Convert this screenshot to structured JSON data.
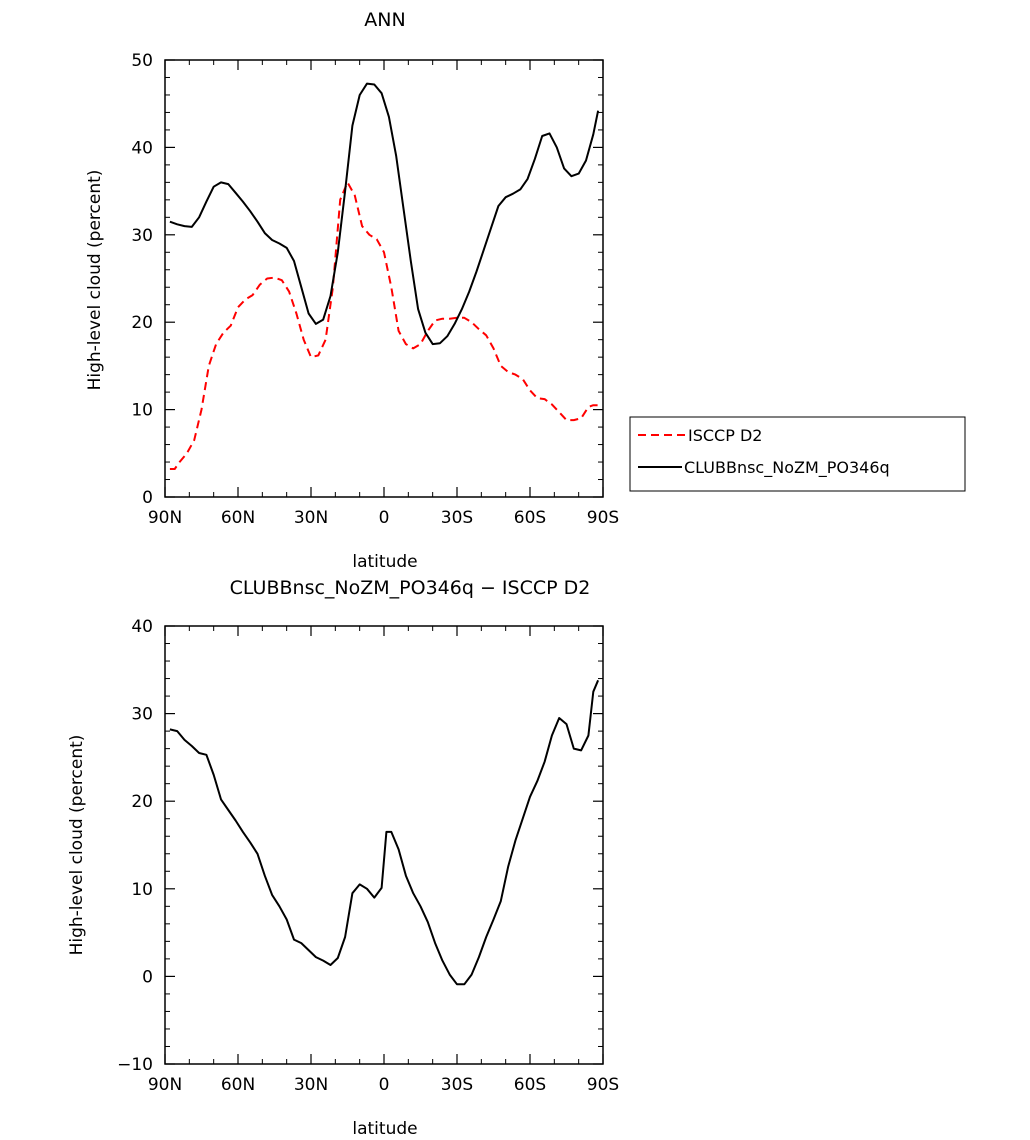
{
  "chart_data": [
    {
      "type": "line",
      "title": "ANN",
      "xlabel": "latitude",
      "ylabel": "High-level cloud (percent)",
      "xlim": [
        90,
        -90
      ],
      "ylim": [
        0,
        50
      ],
      "x_tick_values": [
        90,
        60,
        30,
        0,
        -30,
        -60,
        -90
      ],
      "x_tick_labels": [
        "90N",
        "60N",
        "30N",
        "0",
        "30S",
        "60S",
        "90S"
      ],
      "y_tick_values": [
        0,
        10,
        20,
        30,
        40,
        50
      ],
      "y_tick_labels": [
        "0",
        "10",
        "20",
        "30",
        "40",
        "50"
      ],
      "legend": {
        "placement": "right",
        "entries": [
          "ISCCP D2",
          "CLUBBnsc_NoZM_PO346q"
        ]
      },
      "series": [
        {
          "name": "ISCCP D2",
          "color": "#ff0000",
          "style": "dashed",
          "x": [
            88,
            86,
            84,
            81,
            78,
            75,
            72,
            69,
            66,
            63,
            60,
            57,
            54,
            51,
            48,
            45,
            42,
            39,
            36,
            33,
            30,
            27,
            24,
            21,
            18,
            15,
            12,
            9,
            6,
            3,
            0,
            -3,
            -6,
            -9,
            -12,
            -15,
            -18,
            -21,
            -24,
            -27,
            -30,
            -33,
            -36,
            -39,
            -42,
            -45,
            -48,
            -51,
            -54,
            -57,
            -60,
            -63,
            -66,
            -69,
            -72,
            -75,
            -78,
            -81,
            -84,
            -86,
            -88
          ],
          "values": [
            3.2,
            3.2,
            4.0,
            5.0,
            6.5,
            10.0,
            15.0,
            17.5,
            18.8,
            19.6,
            21.7,
            22.6,
            23.1,
            24.3,
            25.0,
            25.1,
            24.8,
            23.5,
            21.0,
            18.0,
            16.0,
            16.2,
            18.0,
            24.0,
            34.0,
            36.0,
            34.5,
            31.0,
            30.0,
            29.5,
            28.0,
            24.0,
            19.0,
            17.5,
            17.0,
            17.5,
            19.0,
            20.2,
            20.4,
            20.4,
            20.5,
            20.5,
            20.0,
            19.2,
            18.5,
            17.0,
            15.0,
            14.3,
            14.0,
            13.5,
            12.2,
            11.3,
            11.2,
            10.6,
            9.7,
            8.8,
            8.8,
            9.0,
            10.3,
            10.5,
            10.5
          ],
          "note_x_order": "latitude in degrees, positive = north"
        },
        {
          "name": "CLUBBnsc_NoZM_PO346q",
          "color": "#000000",
          "style": "solid",
          "x": [
            88,
            85,
            82,
            79,
            76,
            73,
            70,
            67,
            64,
            61,
            58,
            55,
            52,
            49,
            46,
            43,
            40,
            37,
            34,
            31,
            28,
            25,
            22,
            19,
            16,
            13,
            10,
            7,
            4,
            1,
            -2,
            -5,
            -8,
            -11,
            -14,
            -17,
            -20,
            -23,
            -26,
            -29,
            -32,
            -35,
            -38,
            -41,
            -44,
            -47,
            -50,
            -53,
            -56,
            -59,
            -62,
            -65,
            -68,
            -71,
            -74,
            -77,
            -80,
            -83,
            -86,
            -88
          ],
          "values": [
            31.5,
            31.2,
            31.0,
            30.9,
            32.0,
            33.8,
            35.5,
            36.0,
            35.8,
            34.8,
            33.8,
            32.7,
            31.5,
            30.2,
            29.4,
            29.0,
            28.5,
            27.0,
            24.0,
            21.0,
            19.8,
            20.3,
            23.0,
            28.0,
            35.0,
            42.5,
            46.0,
            47.3,
            47.2,
            46.2,
            43.5,
            39.0,
            33.0,
            27.0,
            21.5,
            18.8,
            17.5,
            17.6,
            18.4,
            19.8,
            21.5,
            23.5,
            25.8,
            28.3,
            30.8,
            33.3,
            34.3,
            34.7,
            35.2,
            36.4,
            38.7,
            41.3,
            41.6,
            40.0,
            37.6,
            36.7,
            37.0,
            38.5,
            41.5,
            44.2
          ]
        }
      ]
    },
    {
      "type": "line",
      "title": "CLUBBnsc_NoZM_PO346q − ISCCP D2",
      "xlabel": "latitude",
      "ylabel": "High-level cloud (percent)",
      "xlim": [
        90,
        -90
      ],
      "ylim": [
        -10,
        40
      ],
      "x_tick_values": [
        90,
        60,
        30,
        0,
        -30,
        -60,
        -90
      ],
      "x_tick_labels": [
        "90N",
        "60N",
        "30N",
        "0",
        "30S",
        "60S",
        "90S"
      ],
      "y_tick_values": [
        -10,
        0,
        10,
        20,
        30,
        40
      ],
      "y_tick_labels": [
        "−10",
        "0",
        "10",
        "20",
        "30",
        "40"
      ],
      "series": [
        {
          "color": "#000000",
          "style": "solid",
          "x": [
            88,
            85,
            82,
            79,
            76,
            73,
            70,
            67,
            64,
            61,
            58,
            55,
            52,
            49,
            46,
            43,
            40,
            37,
            34,
            31,
            28,
            25,
            22,
            19,
            16,
            13,
            10,
            7,
            4,
            1,
            -1,
            -3,
            -6,
            -9,
            -12,
            -15,
            -18,
            -21,
            -24,
            -27,
            -30,
            -33,
            -36,
            -39,
            -42,
            -45,
            -48,
            -51,
            -54,
            -57,
            -60,
            -63,
            -66,
            -69,
            -72,
            -75,
            -78,
            -81,
            -84,
            -86,
            -88
          ],
          "values": [
            28.2,
            28.0,
            27.0,
            26.3,
            25.5,
            25.3,
            23.0,
            20.2,
            19.0,
            17.8,
            16.5,
            15.3,
            14.0,
            11.5,
            9.3,
            8.0,
            6.5,
            4.2,
            3.8,
            3.0,
            2.2,
            1.8,
            1.3,
            2.1,
            4.5,
            9.5,
            10.5,
            10.0,
            9.0,
            10.1,
            16.5,
            16.5,
            14.5,
            11.5,
            9.5,
            8.0,
            6.2,
            3.8,
            1.8,
            0.2,
            -0.9,
            -0.9,
            0.2,
            2.2,
            4.5,
            6.5,
            8.6,
            12.5,
            15.5,
            18.0,
            20.5,
            22.3,
            24.5,
            27.5,
            29.5,
            28.8,
            26.0,
            25.8,
            27.5,
            32.5,
            33.8
          ]
        }
      ]
    }
  ]
}
